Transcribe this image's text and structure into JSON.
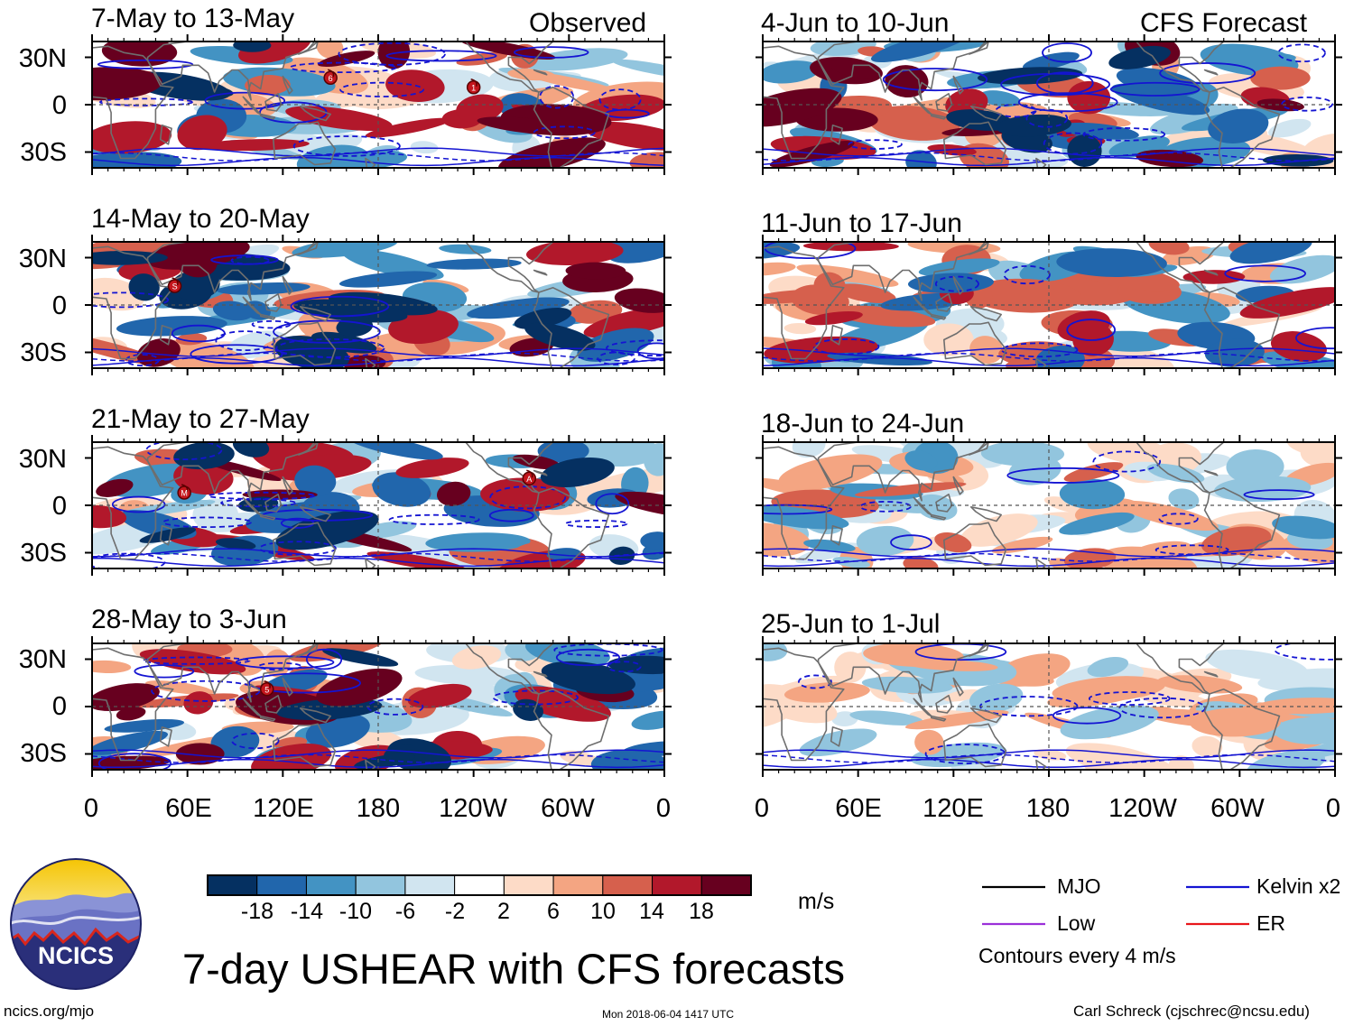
{
  "chart_data": {
    "type": "heatmap",
    "title": "7-day USHEAR with CFS forecasts",
    "headers": {
      "observed": "Observed",
      "forecast": "CFS Forecast"
    },
    "observed_panels": [
      {
        "period": "7-May to 13-May",
        "storms": [
          {
            "label": "6",
            "lon": 150,
            "lat": 17
          },
          {
            "label": "1",
            "lon": -120,
            "lat": 11
          }
        ]
      },
      {
        "period": "14-May to 20-May",
        "storms": [
          {
            "label": "S",
            "lon": 52,
            "lat": 12
          }
        ]
      },
      {
        "period": "21-May to 27-May",
        "storms": [
          {
            "label": "M",
            "lon": 58,
            "lat": 8
          },
          {
            "label": "A",
            "lon": -85,
            "lat": 17
          }
        ]
      },
      {
        "period": "28-May to 3-Jun",
        "storms": [
          {
            "label": "5",
            "lon": 110,
            "lat": 11
          }
        ]
      }
    ],
    "forecast_panels": [
      {
        "period": "4-Jun to 10-Jun"
      },
      {
        "period": "11-Jun to 17-Jun"
      },
      {
        "period": "18-Jun to 24-Jun"
      },
      {
        "period": "25-Jun to 1-Jul"
      }
    ],
    "y_axis": {
      "ticks": [
        "30N",
        "0",
        "30S"
      ],
      "values": [
        30,
        0,
        -30
      ],
      "range": [
        -40,
        40
      ]
    },
    "x_axis": {
      "ticks": [
        "0",
        "60E",
        "120E",
        "180",
        "120W",
        "60W",
        "0"
      ],
      "values": [
        0,
        60,
        120,
        180,
        240,
        300,
        360
      ],
      "range": [
        0,
        360
      ]
    },
    "colorbar": {
      "unit": "m/s",
      "tick_labels": [
        "-18",
        "-14",
        "-10",
        "-6",
        "-2",
        "2",
        "6",
        "10",
        "14",
        "18"
      ],
      "colors": [
        "#053061",
        "#2166ac",
        "#4393c3",
        "#92c5de",
        "#d1e5f0",
        "#ffffff",
        "#fddbc7",
        "#f4a582",
        "#d6604d",
        "#b2182b",
        "#67001f"
      ]
    },
    "legend": {
      "items": [
        {
          "label": "MJO",
          "color": "#000000"
        },
        {
          "label": "Kelvin x2",
          "color": "#1414d2"
        },
        {
          "label": "Low",
          "color": "#9b30d9"
        },
        {
          "label": "ER",
          "color": "#e8161b"
        }
      ],
      "note": "Contours every 4 m/s"
    }
  },
  "footer": {
    "logo_text": "NCICS",
    "site": "ncics.org/mjo",
    "timestamp": "Mon 2018-06-04 1417 UTC",
    "author": "Carl Schreck (cjschrec@ncsu.edu)"
  }
}
